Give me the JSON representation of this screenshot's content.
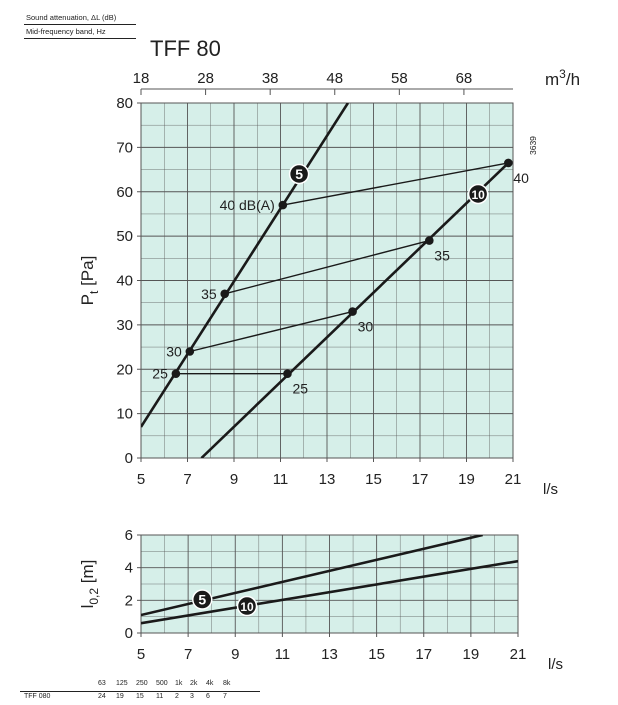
{
  "header": {
    "attenuation_label": "Sound attenuation, ΔL (dB)",
    "band_label": "Mid-frequency band, Hz",
    "product_title": "TFF 80",
    "drawing_code": "3639"
  },
  "colors": {
    "plot_background": "#d6efe9",
    "grid": "#555555",
    "line": "#1a1a1a",
    "marker": "#1a1a1a",
    "badge_fill": "#1a1a1a",
    "badge_text": "#ffffff"
  },
  "chart_data": [
    {
      "id": "pressure",
      "type": "line",
      "xlabel": "l/s",
      "ylabel": "P t [Pa]",
      "ylabel_main": "P",
      "ylabel_sub": "t",
      "ylabel_unit": "[Pa]",
      "xlim": [
        5,
        21
      ],
      "ylim": [
        0,
        80
      ],
      "x_ticks": [
        5,
        7,
        9,
        11,
        13,
        15,
        17,
        19,
        21
      ],
      "y_ticks": [
        0,
        10,
        20,
        30,
        40,
        50,
        60,
        70,
        80
      ],
      "secondary_x": {
        "label": "m3/h",
        "label_main": "m",
        "label_sup": "3",
        "label_tail": "/h",
        "ticks": [
          18,
          28,
          38,
          48,
          58,
          68
        ],
        "factor_to_primary": 0.27778
      },
      "grid": true,
      "series": [
        {
          "name": "5",
          "x": [
            5,
            13.9
          ],
          "y": [
            7,
            80
          ],
          "badge_at": [
            11.8,
            64
          ]
        },
        {
          "name": "10",
          "x": [
            7.6,
            20.8
          ],
          "y": [
            0,
            66.5
          ],
          "badge_at": [
            19.5,
            59.5
          ]
        }
      ],
      "sound_lines": [
        {
          "x": [
            6.5,
            11.3
          ],
          "y": [
            19,
            19
          ],
          "label_left": "25",
          "label_right": "25"
        },
        {
          "x": [
            7.1,
            14.1
          ],
          "y": [
            24,
            33
          ],
          "label_left": "30",
          "label_right": "30"
        },
        {
          "x": [
            8.6,
            17.4
          ],
          "y": [
            37,
            49
          ],
          "label_left": "35",
          "label_right": "35"
        },
        {
          "x": [
            11.1,
            20.8
          ],
          "y": [
            57,
            66.5
          ],
          "label_left": "40 dB(A)",
          "label_right": "40"
        }
      ]
    },
    {
      "id": "throw",
      "type": "line",
      "xlabel": "l/s",
      "ylabel": "l 0,2 [m]",
      "ylabel_main": "l",
      "ylabel_sub": "0,2",
      "ylabel_unit": "[m]",
      "xlim": [
        5,
        21
      ],
      "ylim": [
        0,
        6
      ],
      "x_ticks": [
        5,
        7,
        9,
        11,
        13,
        15,
        17,
        19,
        21
      ],
      "y_ticks": [
        0,
        2,
        4,
        6
      ],
      "grid": true,
      "series": [
        {
          "name": "5",
          "x": [
            5,
            19.5
          ],
          "y": [
            1.1,
            6.0
          ],
          "badge_at": [
            7.6,
            2.05
          ]
        },
        {
          "name": "10",
          "x": [
            5,
            21
          ],
          "y": [
            0.6,
            4.4
          ],
          "badge_at": [
            9.5,
            1.65
          ]
        }
      ]
    }
  ],
  "attenuation_table": {
    "bands": [
      "63",
      "125",
      "250",
      "500",
      "1k",
      "2k",
      "4k",
      "8k"
    ],
    "rows": [
      {
        "name": "TFF 080",
        "values": [
          "24",
          "19",
          "15",
          "11",
          "2",
          "3",
          "6",
          "7"
        ]
      }
    ]
  }
}
